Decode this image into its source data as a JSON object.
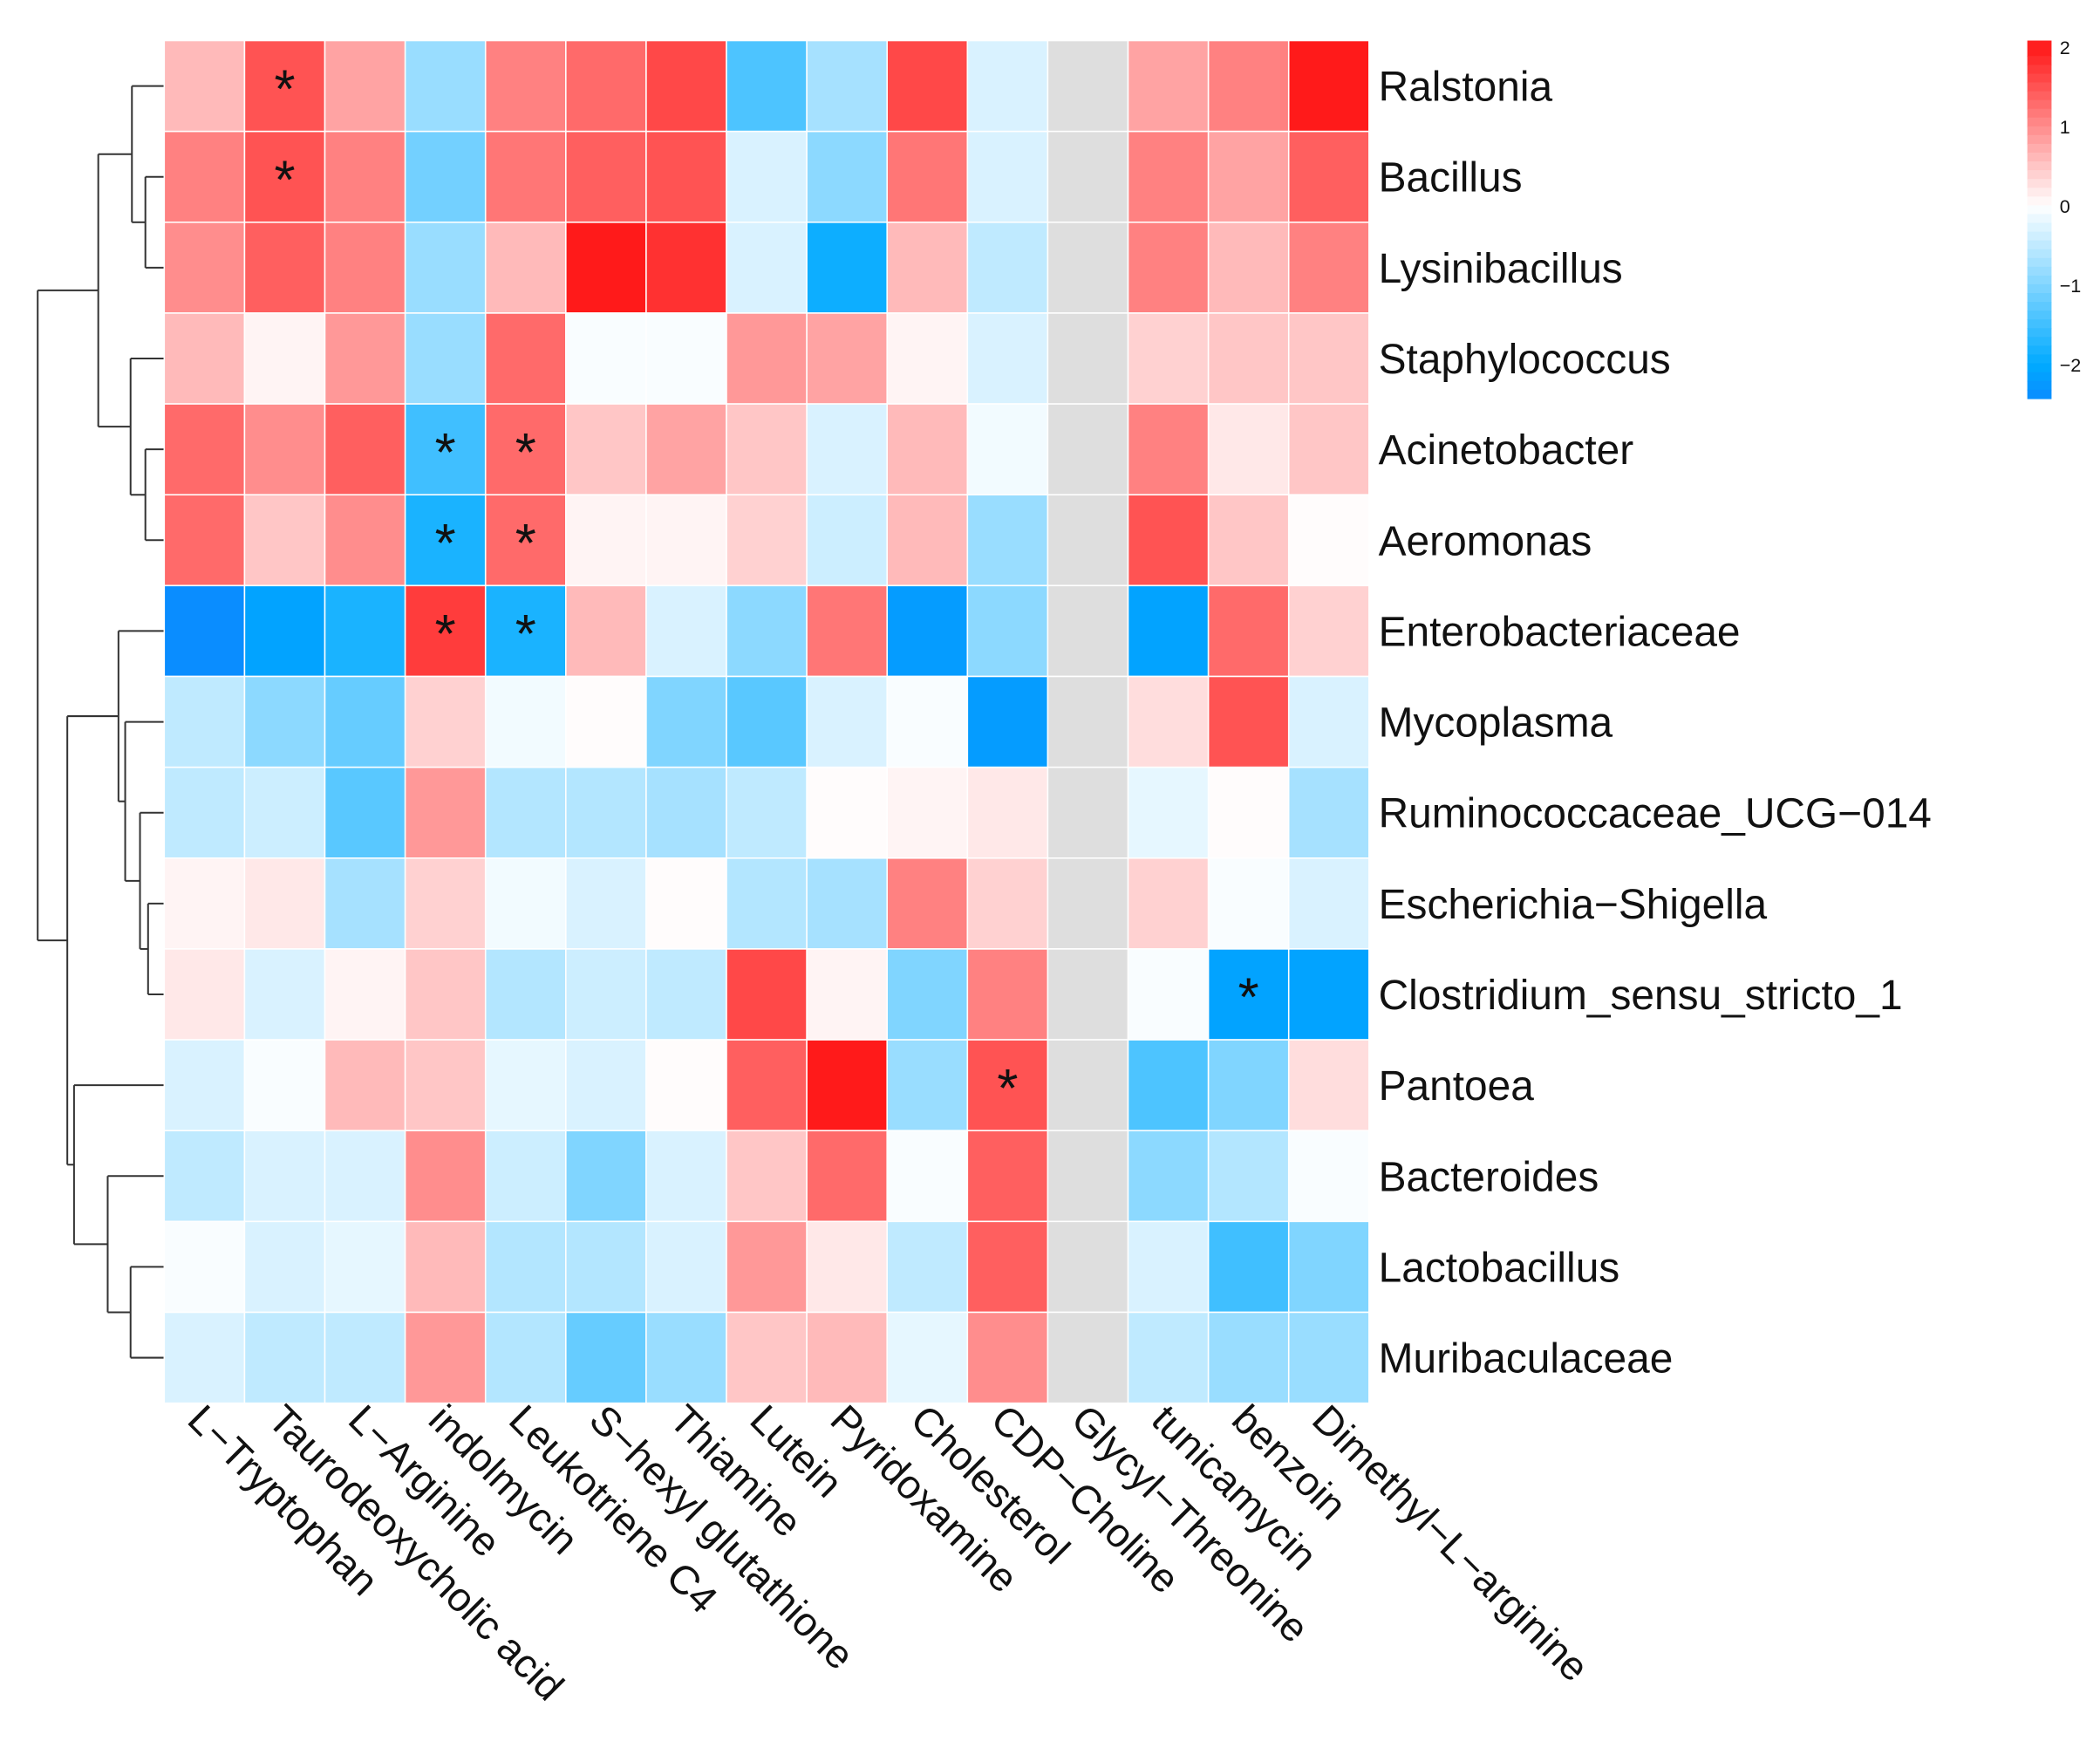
{
  "chart_data": {
    "type": "heatmap",
    "title": "",
    "rows": [
      "Ralstonia",
      "Bacillus",
      "Lysinibacillus",
      "Staphylococcus",
      "Acinetobacter",
      "Aeromonas",
      "Enterobacteriaceae",
      "Mycoplasma",
      "Ruminococcaceae_UCG−014",
      "Escherichia−Shigella",
      "Clostridium_sensu_stricto_1",
      "Pantoea",
      "Bacteroides",
      "Lactobacillus",
      "Muribaculaceae"
    ],
    "columns": [
      "L−Tryptophan",
      "Taurodeoxycholic acid",
      "L−Arginine",
      "indolmycin",
      "Leukotriene C4",
      "S−hexyl glutathione",
      "Thiamine",
      "Lutein",
      "Pyridoxamine",
      "Cholesterol",
      "CDP−Choline",
      "Glycyl−Threonine",
      "tunicamycin",
      "benzoin",
      "Dimethyl−L−arginine"
    ],
    "values": [
      [
        0.6,
        1.5,
        0.8,
        -0.8,
        1.1,
        1.3,
        1.6,
        -1.4,
        -0.7,
        1.6,
        -0.3,
        null,
        0.8,
        1.1,
        2.0
      ],
      [
        1.1,
        1.5,
        1.1,
        -1.1,
        1.2,
        1.4,
        1.5,
        -0.3,
        -0.9,
        1.2,
        -0.3,
        null,
        1.1,
        0.8,
        1.4
      ],
      [
        1.0,
        1.4,
        1.1,
        -0.8,
        0.6,
        2.0,
        1.8,
        -0.3,
        -1.9,
        0.6,
        -0.5,
        null,
        1.1,
        0.6,
        1.1
      ],
      [
        0.6,
        0.1,
        0.9,
        -0.8,
        1.3,
        -0.05,
        -0.05,
        0.9,
        0.8,
        0.1,
        -0.3,
        null,
        0.4,
        0.5,
        0.5
      ],
      [
        1.3,
        1.0,
        1.4,
        -1.5,
        1.3,
        0.5,
        0.8,
        0.5,
        -0.3,
        0.6,
        -0.1,
        null,
        1.1,
        0.2,
        0.5
      ],
      [
        1.3,
        0.5,
        1.0,
        -1.8,
        1.3,
        0.1,
        0.1,
        0.4,
        -0.4,
        0.6,
        -0.8,
        null,
        1.5,
        0.5,
        0.03
      ],
      [
        -2.4,
        -2.1,
        -1.8,
        1.7,
        -1.8,
        0.6,
        -0.3,
        -0.9,
        1.2,
        -2.2,
        -0.9,
        null,
        -2.1,
        1.3,
        0.4
      ],
      [
        -0.5,
        -0.9,
        -1.2,
        0.4,
        -0.1,
        0.03,
        -1.0,
        -1.3,
        -0.3,
        -0.05,
        -2.2,
        null,
        0.3,
        1.5,
        -0.3
      ],
      [
        -0.5,
        -0.4,
        -1.3,
        0.9,
        -0.6,
        -0.6,
        -0.7,
        -0.5,
        0.03,
        0.1,
        0.2,
        null,
        -0.2,
        0.03,
        -0.7
      ],
      [
        0.1,
        0.2,
        -0.7,
        0.4,
        -0.1,
        -0.3,
        0.03,
        -0.6,
        -0.7,
        1.1,
        0.4,
        null,
        0.4,
        -0.05,
        -0.3
      ],
      [
        0.2,
        -0.3,
        0.1,
        0.5,
        -0.6,
        -0.4,
        -0.5,
        1.6,
        0.1,
        -1.0,
        1.1,
        null,
        -0.05,
        -2.1,
        -2.1
      ],
      [
        -0.3,
        -0.05,
        0.6,
        0.5,
        -0.2,
        -0.3,
        0.03,
        1.4,
        2.0,
        -0.8,
        1.5,
        null,
        -1.4,
        -1.0,
        0.3
      ],
      [
        -0.5,
        -0.3,
        -0.3,
        1.0,
        -0.4,
        -1.0,
        -0.3,
        0.5,
        1.3,
        -0.05,
        1.4,
        null,
        -0.9,
        -0.6,
        -0.05
      ],
      [
        -0.05,
        -0.3,
        -0.2,
        0.6,
        -0.6,
        -0.6,
        -0.3,
        0.9,
        0.2,
        -0.5,
        1.4,
        null,
        -0.3,
        -1.5,
        -1.0
      ],
      [
        -0.3,
        -0.5,
        -0.5,
        0.9,
        -0.6,
        -1.2,
        -0.8,
        0.5,
        0.6,
        -0.2,
        1.0,
        null,
        -0.5,
        -0.8,
        -0.8
      ]
    ],
    "significance_marker": "*",
    "significant_cells": [
      [
        0,
        1
      ],
      [
        1,
        1
      ],
      [
        4,
        3
      ],
      [
        4,
        4
      ],
      [
        5,
        3
      ],
      [
        5,
        4
      ],
      [
        6,
        3
      ],
      [
        6,
        4
      ],
      [
        10,
        13
      ],
      [
        11,
        10
      ]
    ],
    "colorbar": {
      "range": [
        -2.42,
        2
      ],
      "ticks": [
        2,
        1,
        0,
        -1,
        -2
      ],
      "tick_labels": [
        "2",
        "1",
        "0",
        "−1",
        "−2"
      ],
      "low_color": "#0A8CFF",
      "mid_low_color": "#00AAFF",
      "mid_color": "#FFFFFF",
      "high_color": "#FF1A1A"
    },
    "na_color": "#DEDEDE",
    "row_dendrogram": {
      "h": 94,
      "c": [
        {
          "h": 49,
          "c": [
            {
              "h": 24,
              "c": [
                "Ralstonia",
                {
                  "h": 14,
                  "c": [
                    "Bacillus",
                    "Lysinibacillus"
                  ]
                }
              ]
            },
            {
              "h": 25,
              "c": [
                "Staphylococcus",
                {
                  "h": 14,
                  "c": [
                    "Acinetobacter",
                    "Aeromonas"
                  ]
                }
              ]
            }
          ]
        },
        {
          "h": 72,
          "c": [
            {
              "h": 34,
              "c": [
                "Enterobacteriaceae",
                {
                  "h": 29,
                  "c": [
                    "Mycoplasma",
                    {
                      "h": 18,
                      "c": [
                        "Ruminococcaceae_UCG−014",
                        {
                          "h": 12,
                          "c": [
                            "Escherichia−Shigella",
                            "Clostridium_sensu_stricto_1"
                          ]
                        }
                      ]
                    }
                  ]
                }
              ]
            },
            {
              "h": 67,
              "c": [
                "Pantoea",
                {
                  "h": 42,
                  "c": [
                    "Bacteroides",
                    {
                      "h": 25,
                      "c": [
                        "Lactobacillus",
                        "Muribaculaceae"
                      ]
                    }
                  ]
                }
              ]
            }
          ]
        }
      ]
    }
  }
}
